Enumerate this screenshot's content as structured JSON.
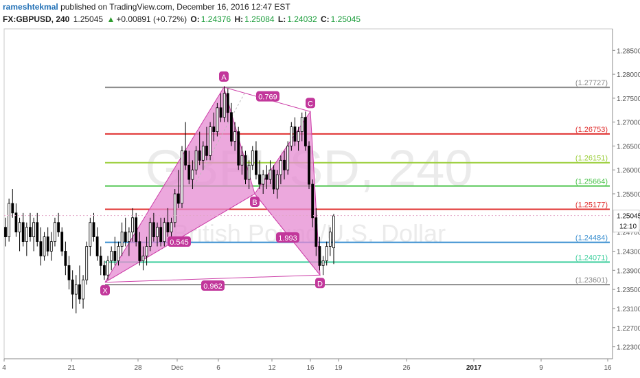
{
  "header": {
    "username": "rameshtekmal",
    "published_text": "published on TradingView.com, December 16, 2016 12:47 EST",
    "symbol": "FX:GBPUSD, 240",
    "last": "1.25045",
    "change_arrow": "▲",
    "change": "+0.00891 (+0.72%)",
    "o_label": "O:",
    "o_value": "1.24376",
    "h_label": "H:",
    "h_value": "1.25084",
    "l_label": "L:",
    "l_value": "1.24032",
    "c_label": "C:",
    "c_value": "1.25045"
  },
  "watermark": {
    "symbol": "GBPUSD, 240",
    "description": "British Pound/U.S. Dollar"
  },
  "colors": {
    "pattern_fill": "#e58bd2",
    "pattern_line": "#cc3fa8",
    "label_bg": "#c2379b",
    "candle": "#000000",
    "gray_level": "#8c8c8c",
    "red_level": "#e0302f",
    "lime_level": "#9ccf3c",
    "green_level": "#4cc44c",
    "blue_level": "#3a8fd0",
    "teal_level": "#3fcf9e"
  },
  "chart_data": {
    "type": "candlestick",
    "symbol": "GBPUSD",
    "timeframe": "240",
    "ylim": [
      1.2205,
      1.2895
    ],
    "y_ticks": [
      "1.28500",
      "1.28000",
      "1.27500",
      "1.27000",
      "1.26500",
      "1.26000",
      "1.25500",
      "1.24700",
      "1.24300",
      "1.23900",
      "1.23500",
      "1.23100",
      "1.22700",
      "1.22300"
    ],
    "x_ticks": [
      "4",
      "21",
      "28",
      "Dec",
      "6",
      "12",
      "16",
      "19",
      "26",
      "2017",
      "9",
      "16"
    ],
    "last_price": "1.25045",
    "countdown": "12:10",
    "levels": [
      {
        "label": "(1.27727)",
        "value": 1.27727,
        "color": "#8c8c8c"
      },
      {
        "label": "(1.26753)",
        "value": 1.26753,
        "color": "#e0302f"
      },
      {
        "label": "(1.26151)",
        "value": 1.26151,
        "color": "#9ccf3c"
      },
      {
        "label": "(1.25664)",
        "value": 1.25664,
        "color": "#4cc44c"
      },
      {
        "label": "(1.25177)",
        "value": 1.25177,
        "color": "#e0302f"
      },
      {
        "label": "(1.24484)",
        "value": 1.24484,
        "color": "#3a8fd0"
      },
      {
        "label": "(1.24071)",
        "value": 1.24071,
        "color": "#3fcf9e"
      },
      {
        "label": "(1.23601)",
        "value": 1.23601,
        "color": "#8c8c8c"
      }
    ],
    "pattern_points": [
      {
        "label": "X",
        "date": "Nov 24",
        "price": 1.2365
      },
      {
        "label": "A",
        "date": "Dec 6",
        "price": 1.2773
      },
      {
        "label": "B",
        "date": "Dec 9",
        "price": 1.255
      },
      {
        "label": "C",
        "date": "Dec 15",
        "price": 1.2722
      },
      {
        "label": "D",
        "date": "Dec 16",
        "price": 1.238
      }
    ],
    "ratios": [
      "0.769",
      "0.545",
      "1.993",
      "0.962"
    ],
    "series": [
      {
        "values": [
          [
            1.248,
            1.25,
            1.244,
            1.246
          ],
          [
            1.246,
            1.254,
            1.245,
            1.253
          ],
          [
            1.253,
            1.256,
            1.25,
            1.251
          ],
          [
            1.251,
            1.253,
            1.246,
            1.247
          ],
          [
            1.247,
            1.25,
            1.243,
            1.249
          ],
          [
            1.249,
            1.251,
            1.244,
            1.245
          ],
          [
            1.245,
            1.249,
            1.242,
            1.248
          ],
          [
            1.248,
            1.251,
            1.245,
            1.246
          ],
          [
            1.246,
            1.25,
            1.243,
            1.249
          ],
          [
            1.249,
            1.251,
            1.244,
            1.245
          ],
          [
            1.245,
            1.248,
            1.24,
            1.242
          ],
          [
            1.242,
            1.247,
            1.241,
            1.246
          ],
          [
            1.246,
            1.248,
            1.242,
            1.243
          ],
          [
            1.243,
            1.247,
            1.241,
            1.245
          ],
          [
            1.245,
            1.25,
            1.244,
            1.249
          ],
          [
            1.249,
            1.251,
            1.246,
            1.247
          ],
          [
            1.247,
            1.248,
            1.242,
            1.243
          ],
          [
            1.243,
            1.245,
            1.238,
            1.24
          ],
          [
            1.24,
            1.242,
            1.235,
            1.237
          ],
          [
            1.237,
            1.239,
            1.231,
            1.234
          ],
          [
            1.234,
            1.238,
            1.23,
            1.236
          ],
          [
            1.236,
            1.24,
            1.232,
            1.233
          ],
          [
            1.233,
            1.238,
            1.231,
            1.237
          ],
          [
            1.237,
            1.245,
            1.236,
            1.244
          ],
          [
            1.244,
            1.25,
            1.242,
            1.249
          ],
          [
            1.249,
            1.251,
            1.245,
            1.246
          ],
          [
            1.246,
            1.248,
            1.241,
            1.242
          ],
          [
            1.242,
            1.244,
            1.238,
            1.24
          ],
          [
            1.24,
            1.241,
            1.237,
            1.238
          ],
          [
            1.238,
            1.242,
            1.237,
            1.241
          ],
          [
            1.241,
            1.244,
            1.239,
            1.243
          ],
          [
            1.243,
            1.246,
            1.24,
            1.241
          ],
          [
            1.241,
            1.245,
            1.24,
            1.244
          ],
          [
            1.244,
            1.249,
            1.242,
            1.247
          ],
          [
            1.247,
            1.25,
            1.244,
            1.245
          ],
          [
            1.245,
            1.248,
            1.242,
            1.247
          ],
          [
            1.247,
            1.252,
            1.245,
            1.25
          ],
          [
            1.25,
            1.251,
            1.244,
            1.245
          ],
          [
            1.245,
            1.247,
            1.24,
            1.241
          ],
          [
            1.241,
            1.244,
            1.239,
            1.242
          ],
          [
            1.242,
            1.246,
            1.24,
            1.244
          ],
          [
            1.244,
            1.25,
            1.243,
            1.249
          ],
          [
            1.249,
            1.251,
            1.245,
            1.246
          ],
          [
            1.246,
            1.249,
            1.244,
            1.248
          ],
          [
            1.248,
            1.25,
            1.244,
            1.245
          ],
          [
            1.245,
            1.25,
            1.244,
            1.249
          ],
          [
            1.249,
            1.252,
            1.246,
            1.247
          ],
          [
            1.247,
            1.25,
            1.245,
            1.249
          ],
          [
            1.249,
            1.256,
            1.248,
            1.255
          ],
          [
            1.255,
            1.26,
            1.252,
            1.253
          ],
          [
            1.253,
            1.265,
            1.252,
            1.264
          ],
          [
            1.264,
            1.27,
            1.26,
            1.261
          ],
          [
            1.261,
            1.264,
            1.257,
            1.258
          ],
          [
            1.258,
            1.262,
            1.256,
            1.26
          ],
          [
            1.26,
            1.265,
            1.259,
            1.264
          ],
          [
            1.264,
            1.268,
            1.261,
            1.262
          ],
          [
            1.262,
            1.266,
            1.26,
            1.265
          ],
          [
            1.265,
            1.269,
            1.262,
            1.263
          ],
          [
            1.263,
            1.27,
            1.262,
            1.269
          ],
          [
            1.269,
            1.272,
            1.266,
            1.268
          ],
          [
            1.268,
            1.274,
            1.267,
            1.273
          ],
          [
            1.273,
            1.276,
            1.27,
            1.271
          ],
          [
            1.271,
            1.2775,
            1.27,
            1.276
          ],
          [
            1.276,
            1.277,
            1.27,
            1.272
          ],
          [
            1.272,
            1.274,
            1.265,
            1.266
          ],
          [
            1.266,
            1.27,
            1.264,
            1.268
          ],
          [
            1.268,
            1.269,
            1.26,
            1.261
          ],
          [
            1.261,
            1.265,
            1.259,
            1.263
          ],
          [
            1.263,
            1.264,
            1.257,
            1.258
          ],
          [
            1.258,
            1.262,
            1.256,
            1.261
          ],
          [
            1.261,
            1.265,
            1.26,
            1.264
          ],
          [
            1.264,
            1.266,
            1.258,
            1.259
          ],
          [
            1.259,
            1.262,
            1.256,
            1.257
          ],
          [
            1.257,
            1.26,
            1.255,
            1.259
          ],
          [
            1.259,
            1.261,
            1.256,
            1.258
          ],
          [
            1.258,
            1.262,
            1.257,
            1.26
          ],
          [
            1.26,
            1.261,
            1.255,
            1.256
          ],
          [
            1.256,
            1.26,
            1.254,
            1.259
          ],
          [
            1.259,
            1.263,
            1.257,
            1.262
          ],
          [
            1.262,
            1.264,
            1.258,
            1.26
          ],
          [
            1.26,
            1.266,
            1.259,
            1.265
          ],
          [
            1.265,
            1.27,
            1.264,
            1.269
          ],
          [
            1.269,
            1.271,
            1.265,
            1.266
          ],
          [
            1.266,
            1.269,
            1.264,
            1.268
          ],
          [
            1.268,
            1.272,
            1.266,
            1.271
          ],
          [
            1.271,
            1.2722,
            1.264,
            1.265
          ],
          [
            1.265,
            1.266,
            1.256,
            1.257
          ],
          [
            1.257,
            1.258,
            1.248,
            1.25
          ],
          [
            1.25,
            1.252,
            1.242,
            1.244
          ],
          [
            1.244,
            1.246,
            1.239,
            1.24
          ],
          [
            1.24,
            1.242,
            1.238,
            1.241
          ],
          [
            1.241,
            1.245,
            1.24,
            1.244
          ],
          [
            1.244,
            1.248,
            1.242,
            1.247
          ],
          [
            1.2437,
            1.2508,
            1.2403,
            1.2504
          ]
        ]
      }
    ]
  }
}
